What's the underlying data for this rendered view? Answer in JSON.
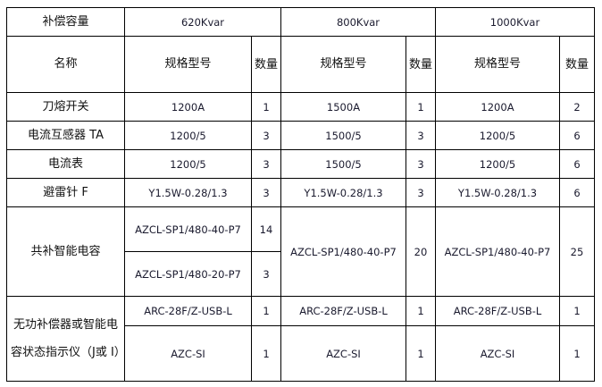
{
  "header": {
    "label": "补偿容量",
    "capacities": [
      "620Kvar",
      "800Kvar",
      "1000Kvar"
    ]
  },
  "subheader": {
    "name": "名称",
    "model": "规格型号",
    "qty": "数量"
  },
  "rows": [
    {
      "name": "刀熔开关",
      "v": [
        [
          "1200A",
          "1"
        ],
        [
          "1500A",
          "1"
        ],
        [
          "1200A",
          "2"
        ]
      ]
    },
    {
      "name": "电流互感器 TA",
      "v": [
        [
          "1200/5",
          "3"
        ],
        [
          "1500/5",
          "3"
        ],
        [
          "1200/5",
          "6"
        ]
      ]
    },
    {
      "name": "电流表",
      "v": [
        [
          "1200/5",
          "3"
        ],
        [
          "1500/5",
          "3"
        ],
        [
          "1200/5",
          "6"
        ]
      ]
    },
    {
      "name": "避雷针 F",
      "v": [
        [
          "Y1.5W-0.28/1.3",
          "3"
        ],
        [
          "Y1.5W-0.28/1.3",
          "3"
        ],
        [
          "Y1.5W-0.28/1.3",
          "6"
        ]
      ]
    }
  ],
  "capacitor": {
    "name": "共补智能电容",
    "c620": [
      [
        "AZCL-SP1/480-40-P7",
        "14"
      ],
      [
        "AZCL-SP1/480-20-P7",
        "3"
      ]
    ],
    "c800": [
      "AZCL-SP1/480-40-P7",
      "20"
    ],
    "c1000": [
      "AZCL-SP1/480-40-P7",
      "25"
    ]
  },
  "controller": {
    "name": "无功补偿器或智能电容状态指示仪（J或 I）",
    "r1": [
      [
        "ARC-28F/Z-USB-L",
        "1"
      ],
      [
        "ARC-28F/Z-USB-L",
        "1"
      ],
      [
        "ARC-28F/Z-USB-L",
        "1"
      ]
    ],
    "r2": [
      [
        "AZC-SI",
        "1"
      ],
      [
        "AZC-SI",
        "1"
      ],
      [
        "AZC-SI",
        "1"
      ]
    ]
  }
}
